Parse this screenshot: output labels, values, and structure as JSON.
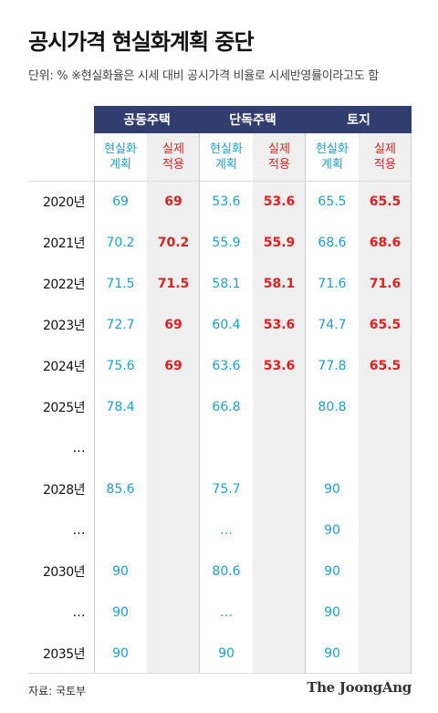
{
  "title": "공시가격 현실화계획 중단",
  "unit_note": "단위: % ※현실화율은 시세 대비 공시가격 비율로 시세반영률이라고도 함",
  "source": "자료: 국토부",
  "logo": "The JoongAng",
  "colors": {
    "header_bg": "#313d6e",
    "plan": "#1aa0cf",
    "actual": "#e02020",
    "shade": "#efefef"
  },
  "chart_data": {
    "type": "table",
    "groups": [
      "공동주택",
      "단독주택",
      "토지"
    ],
    "subheaders": [
      [
        "현실화",
        "계획"
      ],
      [
        "실제",
        "적용"
      ]
    ],
    "rows": [
      {
        "year": "2020년",
        "values": [
          "69",
          "69",
          "53.6",
          "53.6",
          "65.5",
          "65.5"
        ]
      },
      {
        "year": "2021년",
        "values": [
          "70.2",
          "70.2",
          "55.9",
          "55.9",
          "68.6",
          "68.6"
        ]
      },
      {
        "year": "2022년",
        "values": [
          "71.5",
          "71.5",
          "58.1",
          "58.1",
          "71.6",
          "71.6"
        ]
      },
      {
        "year": "2023년",
        "values": [
          "72.7",
          "69",
          "60.4",
          "53.6",
          "74.7",
          "65.5"
        ]
      },
      {
        "year": "2024년",
        "values": [
          "75.6",
          "69",
          "63.6",
          "53.6",
          "77.8",
          "65.5"
        ]
      },
      {
        "year": "2025년",
        "values": [
          "78.4",
          "",
          "66.8",
          "",
          "80.8",
          ""
        ]
      },
      {
        "year": "…",
        "values": [
          "",
          "",
          "",
          "",
          "",
          ""
        ]
      },
      {
        "year": "2028년",
        "values": [
          "85.6",
          "",
          "75.7",
          "",
          "90",
          ""
        ]
      },
      {
        "year": "…",
        "values": [
          "",
          "",
          "…",
          "",
          "90",
          ""
        ]
      },
      {
        "year": "2030년",
        "values": [
          "90",
          "",
          "80.6",
          "",
          "90",
          ""
        ]
      },
      {
        "year": "…",
        "values": [
          "90",
          "",
          "…",
          "",
          "90",
          ""
        ]
      },
      {
        "year": "2035년",
        "values": [
          "90",
          "",
          "90",
          "",
          "90",
          ""
        ]
      }
    ]
  }
}
